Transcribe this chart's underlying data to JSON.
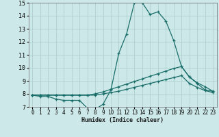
{
  "title": "",
  "xlabel": "Humidex (Indice chaleur)",
  "background_color": "#cce8e8",
  "grid_color": "#aacccc",
  "line_color": "#1a6e6a",
  "xlim": [
    -0.5,
    23.5
  ],
  "ylim": [
    7,
    15
  ],
  "xticks": [
    0,
    1,
    2,
    3,
    4,
    5,
    6,
    7,
    8,
    9,
    10,
    11,
    12,
    13,
    14,
    15,
    16,
    17,
    18,
    19,
    20,
    21,
    22,
    23
  ],
  "yticks": [
    7,
    8,
    9,
    10,
    11,
    12,
    13,
    14,
    15
  ],
  "series": [
    [
      7.9,
      7.8,
      7.8,
      7.6,
      7.5,
      7.5,
      7.5,
      6.9,
      6.8,
      7.2,
      8.3,
      11.1,
      12.6,
      15.0,
      15.0,
      14.1,
      14.3,
      13.6,
      12.1,
      10.1,
      9.3,
      8.8,
      8.3,
      8.2
    ],
    [
      7.9,
      7.9,
      7.9,
      7.9,
      7.9,
      7.9,
      7.9,
      7.9,
      8.0,
      8.15,
      8.35,
      8.55,
      8.75,
      8.95,
      9.15,
      9.35,
      9.55,
      9.75,
      9.95,
      10.1,
      9.3,
      8.85,
      8.55,
      8.2
    ],
    [
      7.9,
      7.9,
      7.9,
      7.9,
      7.9,
      7.9,
      7.9,
      7.9,
      7.9,
      8.0,
      8.1,
      8.2,
      8.35,
      8.5,
      8.65,
      8.8,
      8.95,
      9.1,
      9.25,
      9.4,
      8.8,
      8.5,
      8.25,
      8.1
    ]
  ]
}
